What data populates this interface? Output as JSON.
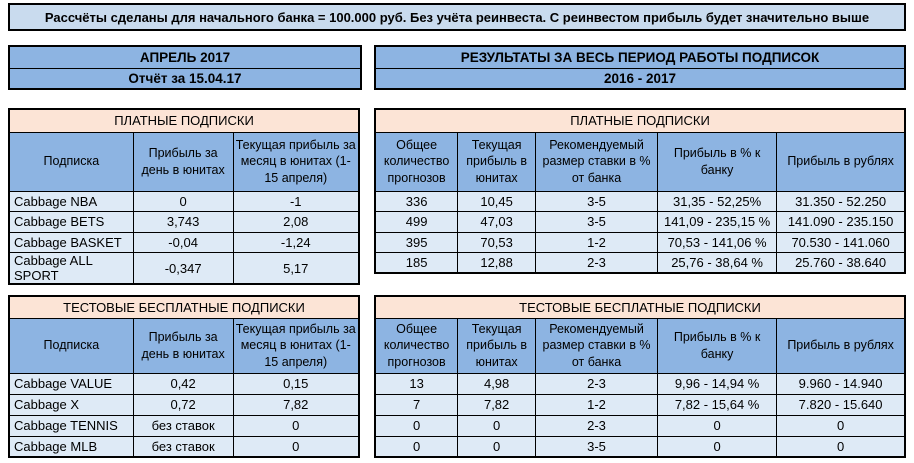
{
  "banner": {
    "text": "Рассчёты сделаны для начального банка = 100.000 руб. Без учёта реинвеста. С реинвестом прибыль будет значительно выше"
  },
  "left_header": {
    "line1": "АПРЕЛЬ 2017",
    "line2": "Отчёт за 15.04.17"
  },
  "right_header": {
    "line1": "РЕЗУЛЬТАТЫ ЗА ВЕСЬ ПЕРИОД РАБОТЫ ПОДПИСОК",
    "line2": "2016 - 2017"
  },
  "left_tables": [
    {
      "title": "ПЛАТНЫЕ ПОДПИСКИ",
      "columns": [
        "Подписка",
        "Прибыль за день в юнитах",
        "Текущая прибыль за месяц в юнитах (1-15 апреля)"
      ],
      "rows": [
        [
          "Cabbage NBA",
          "0",
          "-1"
        ],
        [
          "Cabbage BETS",
          "3,743",
          "2,08"
        ],
        [
          "Cabbage BASKET",
          "-0,04",
          "-1,24"
        ],
        [
          "Cabbage ALL SPORT",
          "-0,347",
          "5,17"
        ]
      ]
    },
    {
      "title": "ТЕСТОВЫЕ БЕСПЛАТНЫЕ ПОДПИСКИ",
      "columns": [
        "Подписка",
        "Прибыль за день в юнитах",
        "Текущая прибыль за месяц в юнитах (1-15 апреля)"
      ],
      "rows": [
        [
          "Cabbage VALUE",
          "0,42",
          "0,15"
        ],
        [
          "Cabbage X",
          "0,72",
          "7,82"
        ],
        [
          "Cabbage TENNIS",
          "без ставок",
          "0"
        ],
        [
          "Cabbage MLB",
          "без ставок",
          "0"
        ]
      ]
    }
  ],
  "right_tables": [
    {
      "title": "ПЛАТНЫЕ ПОДПИСКИ",
      "columns": [
        "Общее количество прогнозов",
        "Текущая прибыль в юнитах",
        "Рекомендуемый размер ставки в % от банка",
        "Прибыль в % к банку",
        "Прибыль в рублях"
      ],
      "rows": [
        [
          "336",
          "10,45",
          "3-5",
          "31,35 - 52,25%",
          "31.350 - 52.250"
        ],
        [
          "499",
          "47,03",
          "3-5",
          "141,09 - 235,15 %",
          "141.090 - 235.150"
        ],
        [
          "395",
          "70,53",
          "1-2",
          "70,53 - 141,06 %",
          "70.530 - 141.060"
        ],
        [
          "185",
          "12,88",
          "2-3",
          "25,76 - 38,64 %",
          "25.760 - 38.640"
        ]
      ]
    },
    {
      "title": "ТЕСТОВЫЕ БЕСПЛАТНЫЕ ПОДПИСКИ",
      "columns": [
        "Общее количество прогнозов",
        "Текущая прибыль в юнитах",
        "Рекомендуемый размер ставки в % от банка",
        "Прибыль в % к банку",
        "Прибыль в рублях"
      ],
      "rows": [
        [
          "13",
          "4,98",
          "2-3",
          "9,96 - 14,94 %",
          "9.960 - 14.940"
        ],
        [
          "7",
          "7,82",
          "1-2",
          "7,82 - 15,64 %",
          "7.820 - 15.640"
        ],
        [
          "0",
          "0",
          "2-3",
          "0",
          "0"
        ],
        [
          "0",
          "0",
          "3-5",
          "0",
          "0"
        ]
      ]
    }
  ],
  "colors": {
    "banner_bg": "#C9DBEE",
    "header_bg": "#8DB4E2",
    "title_bg": "#FCE4D6",
    "cell_bg": "#DEEAF6",
    "border": "#000000",
    "text": "#000000"
  }
}
